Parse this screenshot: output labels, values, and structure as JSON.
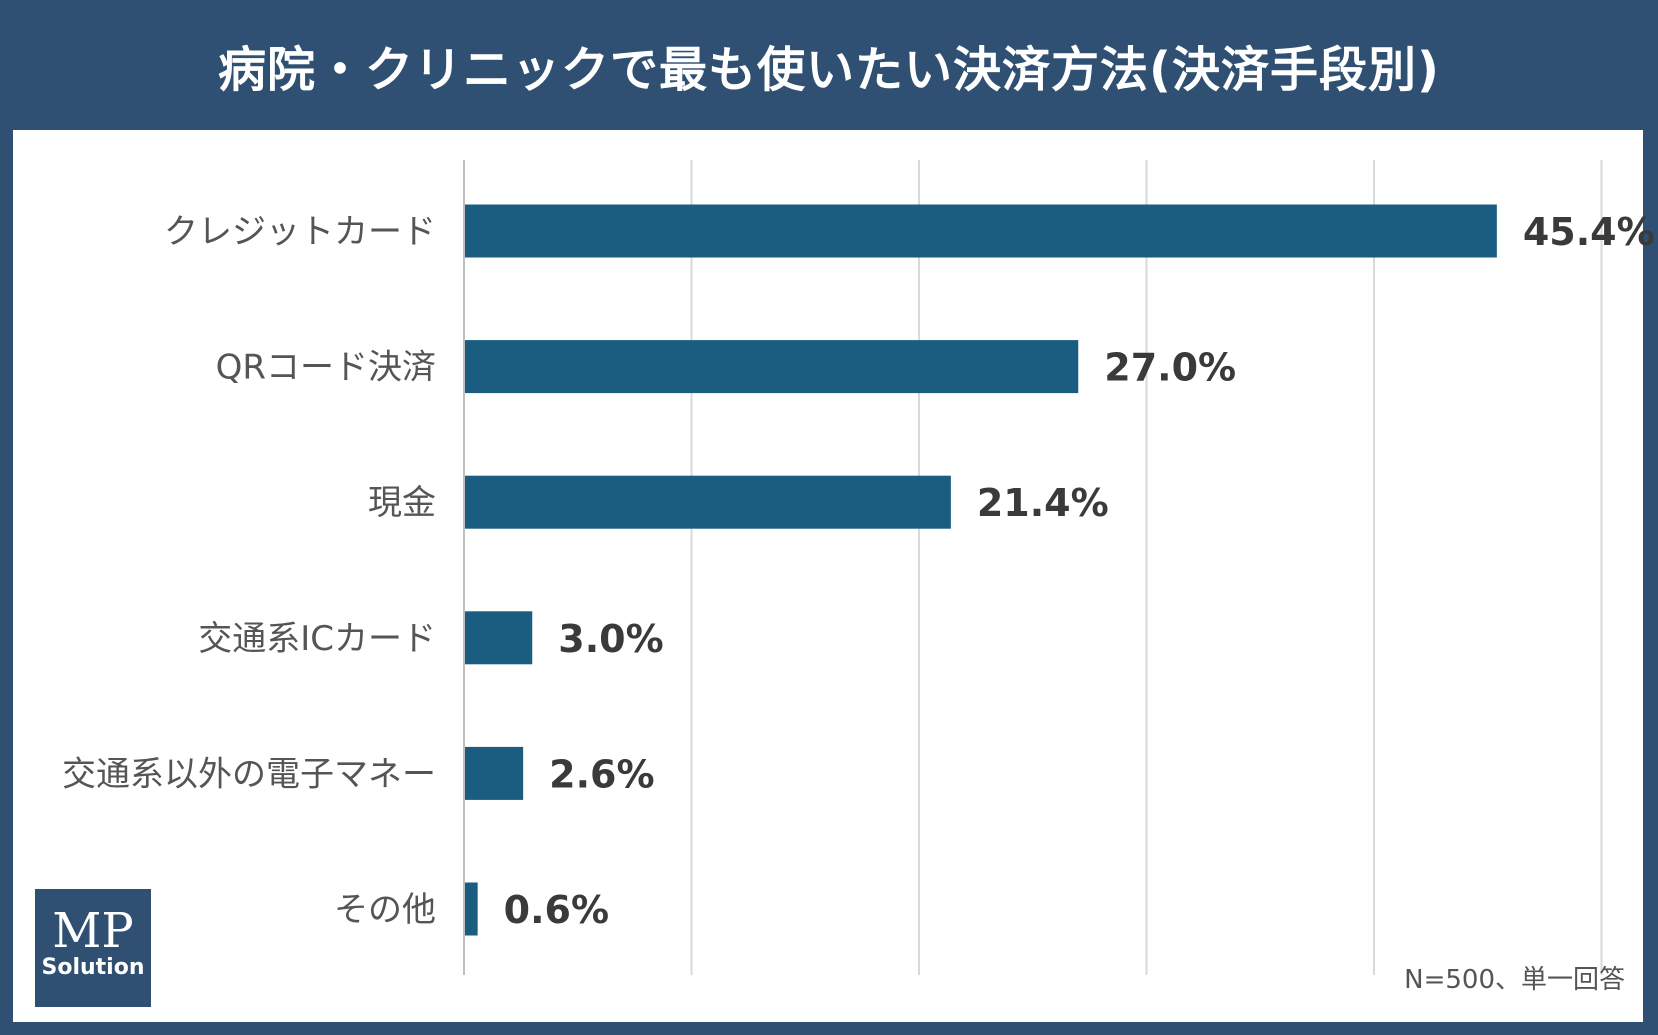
{
  "title": "病院・クリニックで最も使いたい決済方法(決済手段別)",
  "note": "N=500、単一回答",
  "logo": {
    "line1": "MP",
    "line2": "Solution"
  },
  "colors": {
    "background": "#2f5072",
    "bar": "#1a5d80",
    "panel": "#ffffff",
    "grid": "#d9d9d9"
  },
  "chart_data": {
    "type": "bar",
    "orientation": "horizontal",
    "categories": [
      "クレジットカード",
      "QRコード決済",
      "現金",
      "交通系ICカード",
      "交通系以外の電子マネー",
      "その他"
    ],
    "values": [
      45.4,
      27.0,
      21.4,
      3.0,
      2.6,
      0.6
    ],
    "value_labels": [
      "45.4%",
      "27.0%",
      "21.4%",
      "3.0%",
      "2.6%",
      "0.6%"
    ],
    "xlim": [
      0,
      50
    ],
    "grid": true
  }
}
